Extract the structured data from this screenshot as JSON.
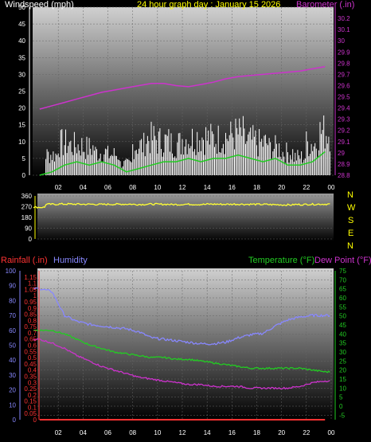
{
  "header": {
    "windspeed_label": "Windspeed (mph)",
    "date_label": "24 hour graph day : January 15 2026",
    "barometer_label": "Barometer (.in)"
  },
  "lower_header": {
    "rainfall_label": "Rainfall (.in)",
    "humidity_label": "Humidity",
    "temperature_label": "Temperature (°F)",
    "dewpoint_label": "Dew Point (°F)"
  },
  "compass": [
    "N",
    "W",
    "S",
    "E",
    "N"
  ],
  "colors": {
    "windspeed": "#ffffff",
    "gust_avg": "#22cc22",
    "barometer": "#cc33cc",
    "direction": "#ffff33",
    "rainfall": "#ff3333",
    "humidity": "#8888ff",
    "temperature": "#22cc22",
    "dewpoint": "#cc33cc",
    "date": "#ffff00"
  },
  "chart_data": [
    {
      "type": "line",
      "name": "wind-barometer",
      "x_ticks": [
        "02",
        "04",
        "06",
        "08",
        "10",
        "12",
        "14",
        "16",
        "18",
        "20",
        "22",
        "00"
      ],
      "y_left_ticks": [
        0,
        5,
        10,
        15,
        20,
        25,
        30,
        35,
        40,
        45,
        50
      ],
      "y_left_range": [
        0,
        50
      ],
      "y_right_ticks": [
        28.8,
        28.9,
        29,
        29.1,
        29.2,
        29.3,
        29.4,
        29.5,
        29.6,
        29.7,
        29.8,
        29.9,
        30,
        30.1,
        30.2
      ],
      "y_right_range": [
        28.8,
        30.3
      ],
      "barometer": [
        29.39,
        29.42,
        29.45,
        29.48,
        29.51,
        29.54,
        29.56,
        29.58,
        29.6,
        29.62,
        29.62,
        29.6,
        29.59,
        29.61,
        29.63,
        29.66,
        29.68,
        29.69,
        29.7,
        29.71,
        29.72,
        29.73,
        29.75,
        29.77
      ],
      "wind_envelope": [
        0,
        9,
        14,
        13,
        12,
        10,
        9,
        5,
        13,
        16,
        15,
        14,
        16,
        17,
        16,
        17,
        18,
        15,
        14,
        12,
        10,
        8,
        14,
        19
      ],
      "wind_avg": [
        0,
        1,
        3,
        4,
        3,
        4,
        3,
        1,
        2,
        3,
        4,
        4,
        5,
        4,
        5,
        5,
        6,
        5,
        4,
        5,
        3,
        3,
        4,
        7
      ]
    },
    {
      "type": "line",
      "name": "wind-direction",
      "y_ticks": [
        0,
        90,
        180,
        270,
        360
      ],
      "y_range": [
        0,
        360
      ],
      "direction": [
        265,
        290,
        292,
        291,
        290,
        289,
        290,
        291,
        289,
        291,
        290,
        288,
        290,
        289,
        291,
        290,
        291,
        290,
        289,
        287,
        285,
        288,
        290,
        291
      ]
    },
    {
      "type": "line",
      "name": "temp-humidity-rain",
      "y_humidity_ticks": [
        0,
        10,
        20,
        30,
        40,
        50,
        60,
        70,
        80,
        90,
        100
      ],
      "y_rain_ticks": [
        0,
        0.05,
        0.1,
        0.15,
        0.2,
        0.25,
        0.3,
        0.35,
        0.4,
        0.45,
        0.5,
        0.55,
        0.6,
        0.65,
        0.7,
        0.75,
        0.8,
        0.85,
        0.9,
        0.95,
        1,
        1.05,
        1.1,
        1.15
      ],
      "y_temp_ticks": [
        -5,
        0,
        5,
        10,
        15,
        20,
        25,
        30,
        35,
        40,
        45,
        50,
        55,
        60,
        65,
        70,
        75
      ],
      "humidity": [
        88,
        86,
        70,
        66,
        64,
        63,
        62,
        61,
        59,
        55,
        54,
        53,
        52,
        51,
        51,
        52,
        55,
        57,
        58,
        63,
        67,
        69,
        70,
        70
      ],
      "temperature": [
        42,
        42,
        40,
        37,
        34,
        32,
        30,
        29,
        28,
        27,
        27,
        26,
        26,
        25,
        24,
        23,
        22,
        21,
        21,
        21,
        21,
        21,
        20,
        19
      ],
      "dewpoint": [
        37,
        35,
        32,
        28,
        25,
        22,
        20,
        18,
        16,
        15,
        14,
        13,
        12,
        12,
        11,
        11,
        11,
        10,
        10,
        10,
        10,
        11,
        13,
        14
      ],
      "rainfall": [
        0,
        0,
        0,
        0,
        0,
        0,
        0,
        0,
        0,
        0,
        0,
        0,
        0,
        0,
        0,
        0,
        0,
        0,
        0,
        0,
        0,
        0,
        0,
        0
      ]
    }
  ]
}
